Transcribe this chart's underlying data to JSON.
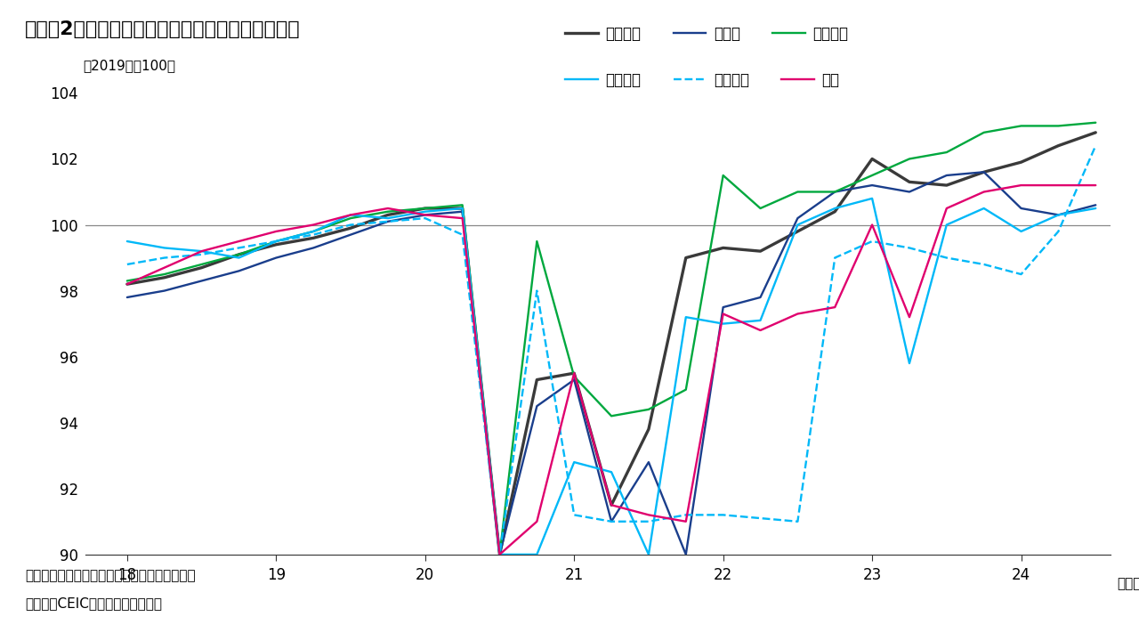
{
  "title": "（図表2）欧州主要国における実質民間消費の推移",
  "ylabel_text": "（2019年＝100）",
  "xlabel_unit": "（年）",
  "note1": "（注）見やすさのため、縦軸を限定している。",
  "note2": "（出所）CEICよりインベスコ作成",
  "ylim": [
    90,
    104
  ],
  "yticks": [
    90,
    92,
    94,
    96,
    98,
    100,
    102,
    104
  ],
  "xticks": [
    18,
    19,
    20,
    21,
    22,
    23,
    24
  ],
  "n_quarters": 27,
  "x_start": 18.0,
  "x_step": 0.25,
  "background_color": "#ffffff",
  "reference_line": 100,
  "reference_line_color": "#888888",
  "series": {
    "ユーロ圏": {
      "color": "#3a3a3a",
      "linewidth": 2.4,
      "linestyle": "solid",
      "data": [
        98.2,
        98.4,
        98.7,
        99.1,
        99.4,
        99.6,
        99.9,
        100.3,
        100.5,
        100.5,
        90.0,
        95.3,
        95.5,
        91.5,
        93.8,
        99.0,
        99.3,
        99.2,
        99.8,
        100.4,
        102.0,
        101.3,
        101.2,
        101.6,
        101.9,
        102.4,
        102.8
      ]
    },
    "ドイツ": {
      "color": "#1a3e8c",
      "linewidth": 1.7,
      "linestyle": "solid",
      "data": [
        97.8,
        98.0,
        98.3,
        98.6,
        99.0,
        99.3,
        99.7,
        100.1,
        100.3,
        100.4,
        90.0,
        94.5,
        95.3,
        91.0,
        92.8,
        90.0,
        97.5,
        97.8,
        100.2,
        101.0,
        101.2,
        101.0,
        101.5,
        101.6,
        100.5,
        100.3,
        100.6
      ]
    },
    "フランス": {
      "color": "#00a83e",
      "linewidth": 1.7,
      "linestyle": "solid",
      "data": [
        98.3,
        98.5,
        98.8,
        99.1,
        99.5,
        99.8,
        100.2,
        100.4,
        100.5,
        100.6,
        90.0,
        99.5,
        95.4,
        94.2,
        94.4,
        95.0,
        101.5,
        100.5,
        101.0,
        101.0,
        101.5,
        102.0,
        102.2,
        102.8,
        103.0,
        103.0,
        103.1
      ]
    },
    "イタリア": {
      "color": "#00b8f8",
      "linewidth": 1.7,
      "linestyle": "solid",
      "data": [
        99.5,
        99.3,
        99.2,
        99.0,
        99.5,
        99.8,
        100.3,
        100.2,
        100.4,
        100.5,
        90.0,
        90.0,
        92.8,
        92.5,
        90.0,
        97.2,
        97.0,
        97.1,
        100.0,
        100.5,
        100.8,
        95.8,
        100.0,
        100.5,
        99.8,
        100.3,
        100.5
      ]
    },
    "スペイン": {
      "color": "#00b8f8",
      "linewidth": 1.7,
      "linestyle": "dashed",
      "data": [
        98.8,
        99.0,
        99.1,
        99.3,
        99.5,
        99.7,
        100.0,
        100.1,
        100.2,
        99.7,
        90.0,
        98.0,
        91.2,
        91.0,
        91.0,
        91.2,
        91.2,
        91.1,
        91.0,
        99.0,
        99.5,
        99.3,
        99.0,
        98.8,
        98.5,
        99.8,
        102.4
      ]
    },
    "英国": {
      "color": "#e0006e",
      "linewidth": 1.7,
      "linestyle": "solid",
      "data": [
        98.2,
        98.7,
        99.2,
        99.5,
        99.8,
        100.0,
        100.3,
        100.5,
        100.3,
        100.2,
        90.0,
        91.0,
        95.5,
        91.5,
        91.2,
        91.0,
        97.3,
        96.8,
        97.3,
        97.5,
        100.0,
        97.2,
        100.5,
        101.0,
        101.2,
        101.2,
        101.2
      ]
    }
  },
  "legend_row1": [
    "ユーロ圏",
    "ドイツ",
    "フランス"
  ],
  "legend_row2": [
    "イタリア",
    "スペイン",
    "英国"
  ]
}
